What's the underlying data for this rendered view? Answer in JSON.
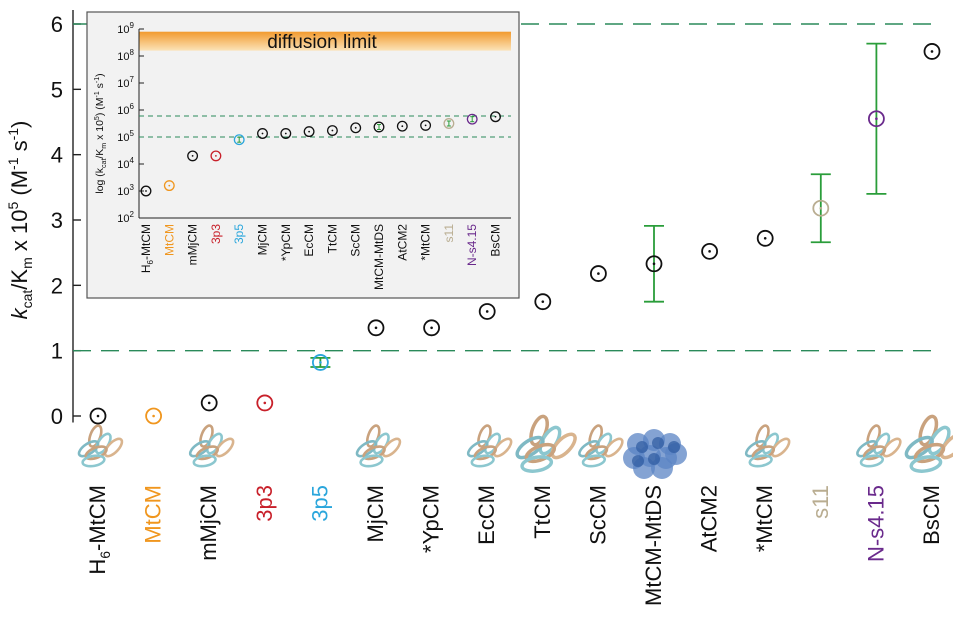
{
  "chart_data": [
    {
      "type": "scatter",
      "ylabel": {
        "main": "k",
        "sub1": "cat",
        "mid": "/K",
        "sub2": "m",
        "tail": " x 10",
        "sup": "5",
        "tail2": " (M",
        "sup2": "-1",
        "mid2": " s",
        "sup3": "-1",
        "end": ")"
      },
      "ylim": [
        -0.1,
        6.2
      ],
      "yticks": [
        "0",
        "1",
        "2",
        "3",
        "4",
        "5",
        "6"
      ],
      "reference_lines": [
        1,
        6
      ],
      "categories": [
        "H6-MtCM",
        "MtCM",
        "mMjCM",
        "3p3",
        "3p5",
        "MjCM",
        "*YpCM",
        "EcCM",
        "TtCM",
        "ScCM",
        "MtCM-MtDS",
        "AtCM2",
        "*MtCM",
        "s11",
        "N-s4.15",
        "BsCM"
      ],
      "label_colors": [
        "#111111",
        "#f0961e",
        "#111111",
        "#c8202a",
        "#2aa6dc",
        "#111111",
        "#111111",
        "#111111",
        "#111111",
        "#111111",
        "#111111",
        "#111111",
        "#111111",
        "#b9ad91",
        "#6a2a8c",
        "#111111"
      ],
      "values": [
        0.0,
        0.0,
        0.2,
        0.2,
        0.82,
        1.35,
        1.35,
        1.6,
        1.75,
        2.18,
        2.33,
        2.52,
        2.72,
        3.18,
        4.55,
        5.58
      ],
      "error": [
        null,
        null,
        null,
        null,
        0.07,
        null,
        null,
        null,
        null,
        null,
        0.58,
        null,
        null,
        0.52,
        1.15,
        null
      ],
      "marker_colors": [
        "#111111",
        "#f0961e",
        "#111111",
        "#c8202a",
        "#2aa6dc",
        "#111111",
        "#111111",
        "#111111",
        "#111111",
        "#111111",
        "#111111",
        "#111111",
        "#111111",
        "#b9ad91",
        "#6a2a8c",
        "#111111"
      ],
      "error_color": "#2a9d3a",
      "reference_line_color": "#2a8a5a",
      "structure_images": [
        "ribbon",
        "none",
        "ribbon",
        "none",
        "none",
        "ribbon",
        "none",
        "ribbon",
        "ribbon-large",
        "ribbon",
        "surface",
        "none",
        "ribbon",
        "none",
        "ribbon",
        "ribbon-large"
      ]
    },
    {
      "type": "scatter",
      "log_scale": true,
      "ylabel": "log (kcat/Km x 10^5) (M^-1 s^-1)",
      "ylim_exponent": [
        2,
        9
      ],
      "yticks_exponent": [
        2,
        3,
        4,
        5,
        6,
        7,
        8,
        9
      ],
      "band_label": "diffusion limit",
      "band_exponent": [
        8.2,
        8.9
      ],
      "reference_lines_exponent": [
        5.0,
        5.78
      ],
      "categories": [
        "H6-MtCM",
        "MtCM",
        "mMjCM",
        "3p3",
        "3p5",
        "MjCM",
        "*YpCM",
        "EcCM",
        "TtCM",
        "ScCM",
        "MtCM-MtDS",
        "AtCM2",
        "*MtCM",
        "s11",
        "N-s4.15",
        "BsCM"
      ],
      "values_exponent": [
        3.0,
        3.2,
        4.3,
        4.3,
        4.9,
        5.13,
        5.13,
        5.2,
        5.24,
        5.34,
        5.37,
        5.4,
        5.43,
        5.5,
        5.66,
        5.75
      ]
    }
  ]
}
